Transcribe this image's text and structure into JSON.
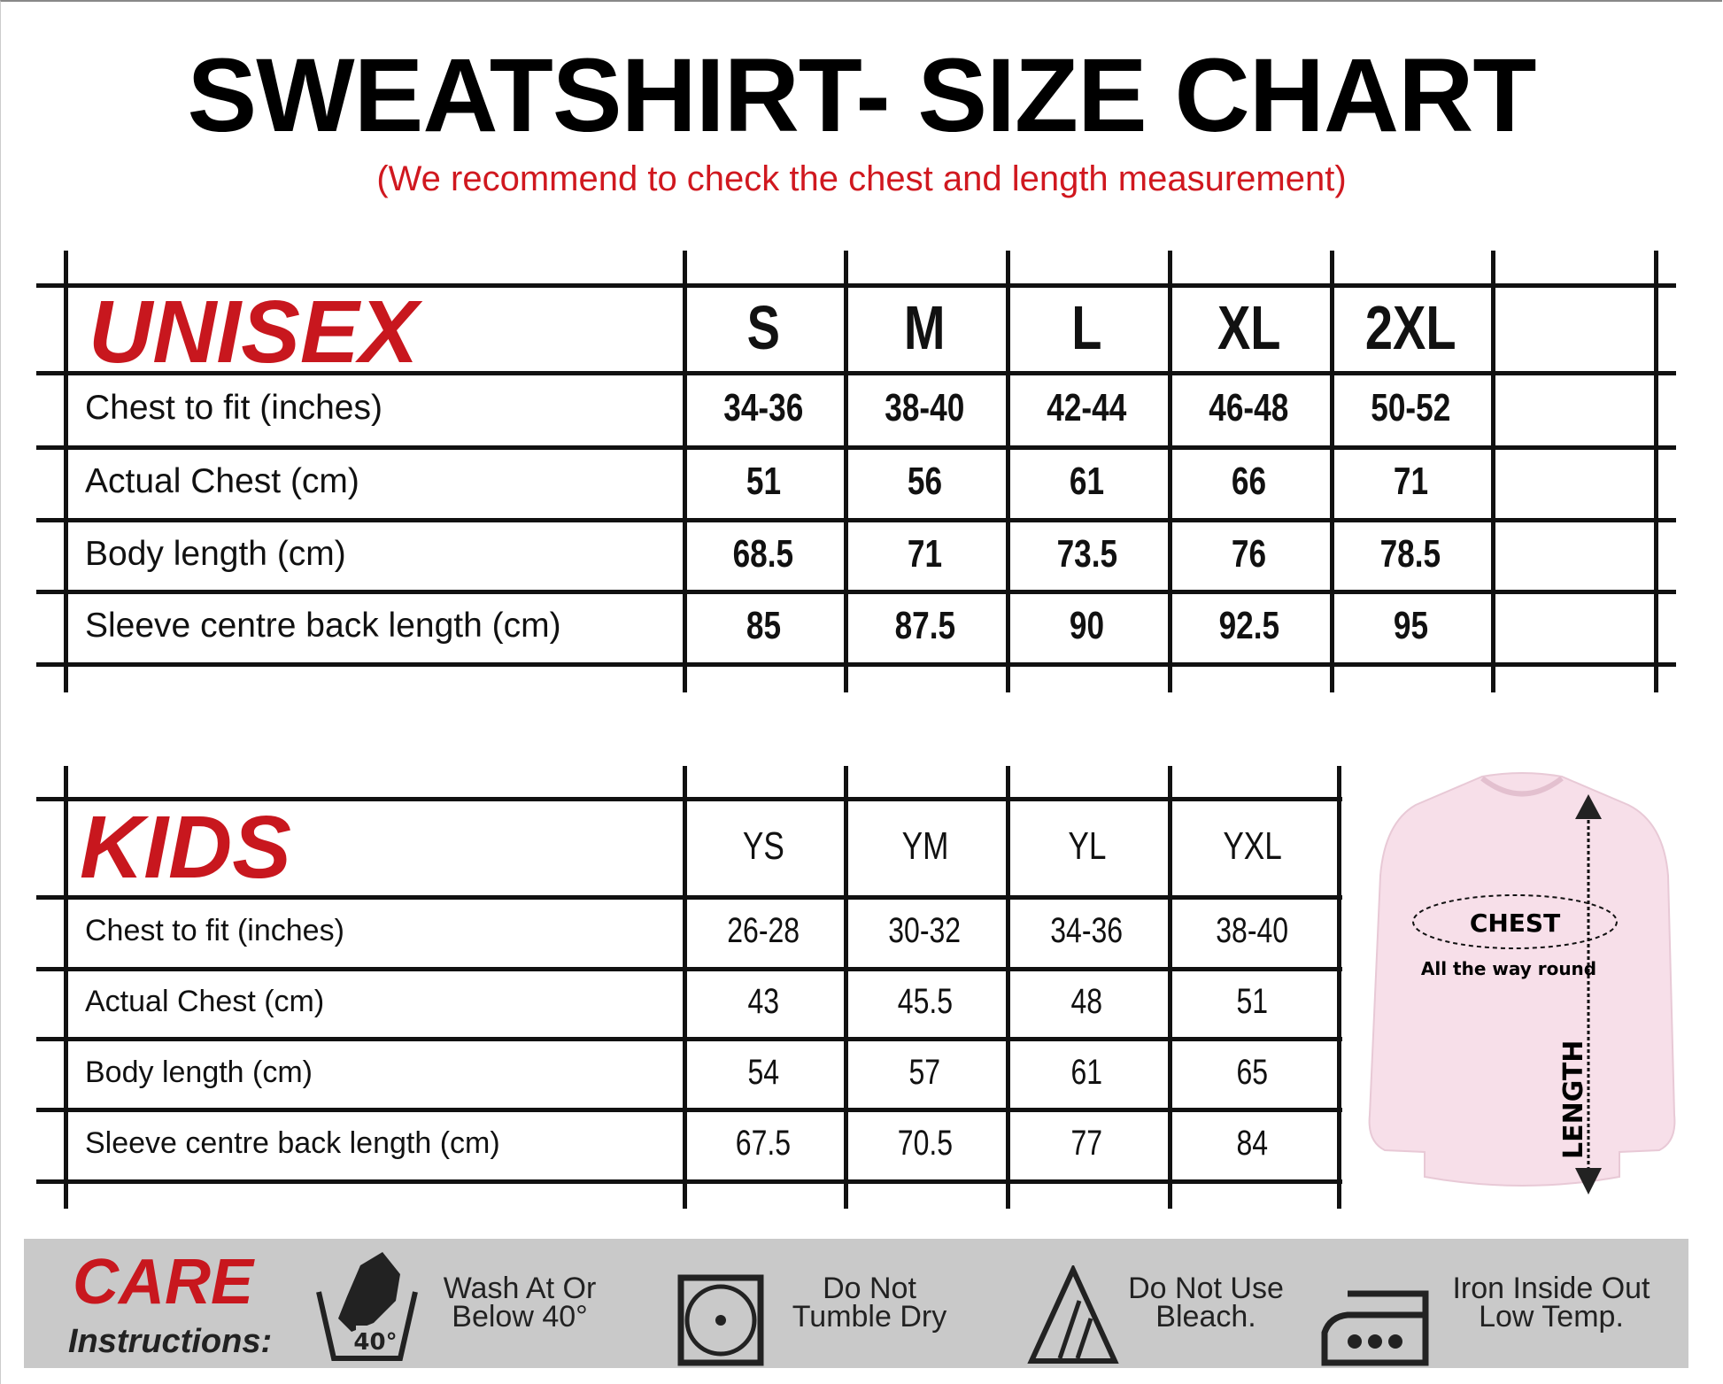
{
  "title": "SWEATSHIRT- SIZE CHART",
  "subtitle": "(We recommend to check the chest and length measurement)",
  "accent_color": "#c8171e",
  "unisex": {
    "heading": "UNISEX",
    "sizes": [
      "S",
      "M",
      "L",
      "XL",
      "2XL"
    ],
    "rows": [
      {
        "label": "Chest to fit (inches)",
        "values": [
          "34-36",
          "38-40",
          "42-44",
          "46-48",
          "50-52"
        ]
      },
      {
        "label": "Actual Chest (cm)",
        "values": [
          "51",
          "56",
          "61",
          "66",
          "71"
        ]
      },
      {
        "label": "Body length (cm)",
        "values": [
          "68.5",
          "71",
          "73.5",
          "76",
          "78.5"
        ]
      },
      {
        "label": "Sleeve centre back length (cm)",
        "values": [
          "85",
          "87.5",
          "90",
          "92.5",
          "95"
        ]
      }
    ]
  },
  "kids": {
    "heading": "KIDS",
    "sizes": [
      "YS",
      "YM",
      "YL",
      "YXL"
    ],
    "rows": [
      {
        "label": "Chest to fit (inches)",
        "values": [
          "26-28",
          "30-32",
          "34-36",
          "38-40"
        ]
      },
      {
        "label": "Actual Chest (cm)",
        "values": [
          "43",
          "45.5",
          "48",
          "51"
        ]
      },
      {
        "label": "Body length (cm)",
        "values": [
          "54",
          "57",
          "61",
          "65"
        ]
      },
      {
        "label": "Sleeve centre back length (cm)",
        "values": [
          "67.5",
          "70.5",
          "77",
          "84"
        ]
      }
    ]
  },
  "diagram": {
    "chest_label": "CHEST",
    "chest_note": "All the way round",
    "length_label": "LENGTH",
    "shirt_color": "#f7dfe9"
  },
  "care": {
    "heading": "CARE",
    "subheading": "Instructions:",
    "items": [
      {
        "icon": "wash-40-icon",
        "line1": "Wash At Or",
        "line2": "Below 40°",
        "badge": "40°"
      },
      {
        "icon": "no-tumble-dry-icon",
        "line1": "Do  Not",
        "line2": "Tumble Dry"
      },
      {
        "icon": "no-bleach-icon",
        "line1": "Do Not Use",
        "line2": "Bleach."
      },
      {
        "icon": "iron-low-icon",
        "line1": "Iron Inside Out",
        "line2": "Low Temp."
      }
    ]
  }
}
